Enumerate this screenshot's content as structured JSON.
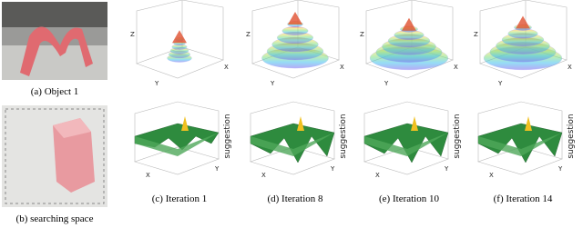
{
  "figure": {
    "left": [
      {
        "caption": "(a) Object 1"
      },
      {
        "caption": "(b) searching space"
      }
    ],
    "panels": [
      {
        "caption": "(c) Iteration 1"
      },
      {
        "caption": "(d) Iteration 8"
      },
      {
        "caption": "(e) Iteration 10"
      },
      {
        "caption": "(f) Iteration 14"
      }
    ],
    "axis_labels": {
      "z": "Z",
      "x": "X",
      "y": "Y",
      "suggestion": "suggestion"
    }
  }
}
